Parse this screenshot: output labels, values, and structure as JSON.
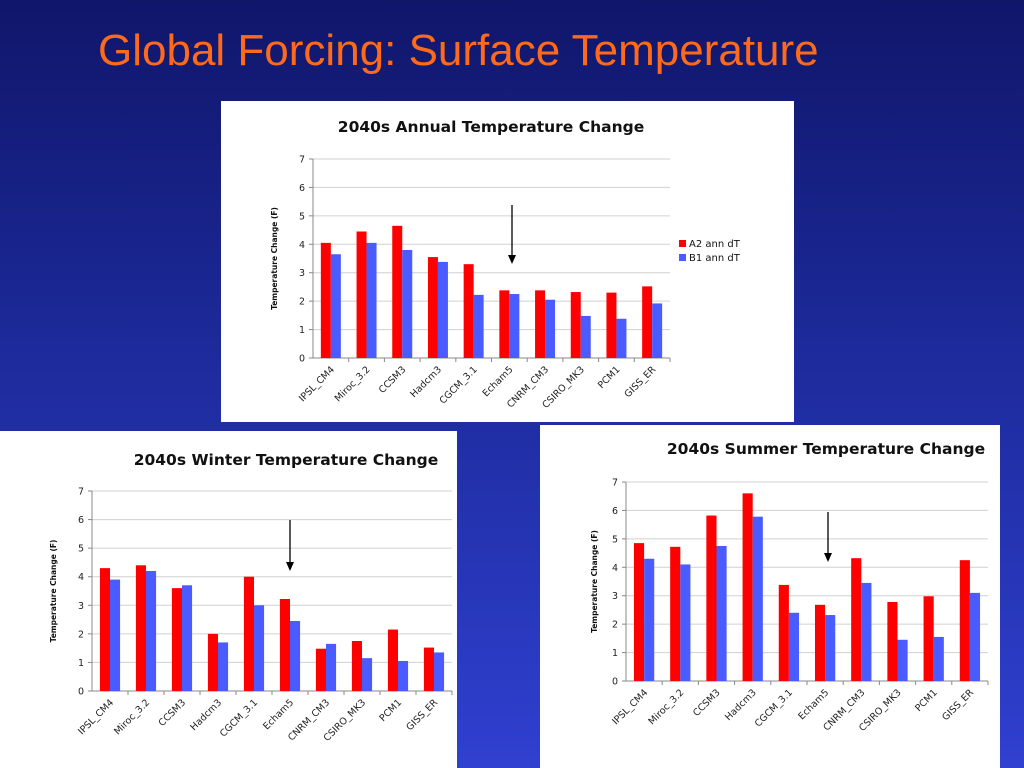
{
  "slide": {
    "title": "Global Forcing: Surface Temperature"
  },
  "colors": {
    "a2": "#ff0000",
    "b1": "#4a5cff",
    "grid": "#d0d0d0",
    "axis": "#888888"
  },
  "chart_data": [
    {
      "id": "annual",
      "type": "bar",
      "title": "2040s Annual Temperature Change",
      "ylabel": "Temperature Change (F)",
      "xlabel": "",
      "ylim": [
        0,
        7
      ],
      "yticks": [
        0,
        1,
        2,
        3,
        4,
        5,
        6,
        7
      ],
      "grid": true,
      "legend": "right",
      "categories": [
        "IPSL_CM4",
        "Miroc_3.2",
        "CCSM3",
        "Hadcm3",
        "CGCM_3.1",
        "Echam5",
        "CNRM_CM3",
        "CSIRO_MK3",
        "PCM1",
        "GISS_ER"
      ],
      "series": [
        {
          "name": "A2 ann dT",
          "values": [
            4.05,
            4.45,
            4.65,
            3.55,
            3.3,
            2.38,
            2.38,
            2.32,
            2.3,
            2.52
          ]
        },
        {
          "name": "B1 ann dT",
          "values": [
            3.65,
            4.05,
            3.8,
            3.38,
            2.22,
            2.25,
            2.05,
            1.48,
            1.38,
            1.92
          ]
        }
      ],
      "annotation_arrow_category": "Echam5"
    },
    {
      "id": "winter",
      "type": "bar",
      "title": "2040s Winter Temperature Change",
      "ylabel": "Temperature Change (F)",
      "xlabel": "",
      "ylim": [
        0,
        7
      ],
      "yticks": [
        0,
        1,
        2,
        3,
        4,
        5,
        6,
        7
      ],
      "grid": true,
      "legend": "none",
      "categories": [
        "IPSL_CM4",
        "Miroc_3.2",
        "CCSM3",
        "Hadcm3",
        "CGCM_3.1",
        "Echam5",
        "CNRM_CM3",
        "CSIRO_MK3",
        "PCM1",
        "GISS_ER"
      ],
      "series": [
        {
          "values": [
            4.3,
            4.4,
            3.6,
            2.0,
            4.0,
            3.22,
            1.48,
            1.75,
            2.15,
            1.52
          ]
        },
        {
          "values": [
            3.9,
            4.2,
            3.7,
            1.7,
            3.0,
            2.45,
            1.65,
            1.15,
            1.05,
            1.35
          ]
        }
      ],
      "annotation_arrow_category": "Echam5"
    },
    {
      "id": "summer",
      "type": "bar",
      "title": "2040s Summer Temperature Change",
      "ylabel": "Temperature Change (F)",
      "xlabel": "",
      "ylim": [
        0,
        7
      ],
      "yticks": [
        0,
        1,
        2,
        3,
        4,
        5,
        6,
        7
      ],
      "grid": true,
      "legend": "none",
      "categories": [
        "IPSL_CM4",
        "Miroc_3.2",
        "CCSM3",
        "Hadcm3",
        "CGCM_3.1",
        "Echam5",
        "CNRM_CM3",
        "CSIRO_MK3",
        "PCM1",
        "GISS_ER"
      ],
      "series": [
        {
          "values": [
            4.85,
            4.72,
            5.82,
            6.6,
            3.38,
            2.68,
            4.32,
            2.78,
            2.98,
            4.25
          ]
        },
        {
          "values": [
            4.3,
            4.1,
            4.75,
            5.78,
            2.4,
            2.32,
            3.45,
            1.45,
            1.55,
            3.1
          ]
        }
      ],
      "annotation_arrow_category": "Echam5"
    }
  ]
}
